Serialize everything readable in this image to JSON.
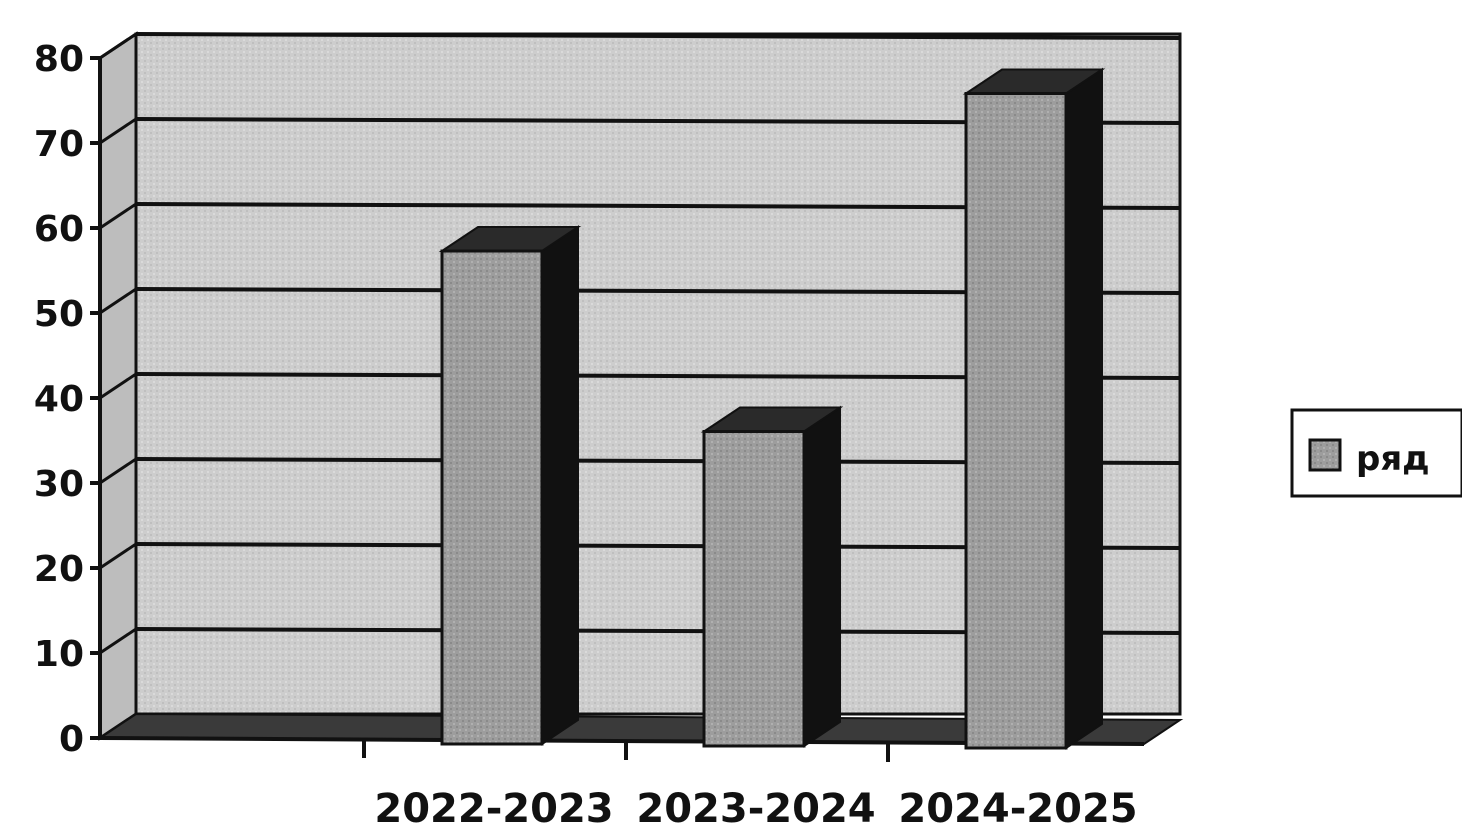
{
  "chart_data": {
    "type": "bar",
    "categories": [
      "2022-2023",
      "2023-2024",
      "2024-2025"
    ],
    "series": [
      {
        "name": "ряд",
        "values": [
          58,
          37,
          77
        ]
      }
    ],
    "ylim": [
      0,
      80
    ],
    "yticks": [
      0,
      10,
      20,
      30,
      40,
      50,
      60,
      70,
      80
    ],
    "grid": true,
    "legend": "right",
    "style": "3d",
    "colors": {
      "wall": "#cfcfcf",
      "wall_dark": "#bdbdbd",
      "bar_front": "#9a9a9a",
      "bar_side": "#111111",
      "bar_top": "#2a2a2a",
      "floor": "#3a3a3a",
      "grid": "#111111"
    }
  }
}
